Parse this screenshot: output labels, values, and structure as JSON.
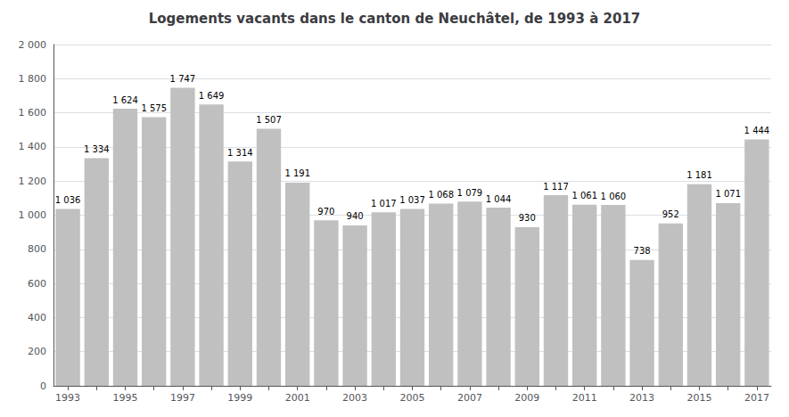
{
  "chart_data": {
    "type": "bar",
    "title": "Logements vacants dans le canton de Neuchâtel, de 1993 à 2017",
    "categories": [
      1993,
      null,
      1995,
      null,
      1997,
      null,
      1999,
      null,
      2001,
      null,
      2003,
      null,
      2005,
      null,
      2007,
      null,
      2009,
      null,
      2011,
      null,
      2013,
      null,
      2015,
      null,
      2017
    ],
    "values": [
      1036,
      1334,
      1624,
      1575,
      1747,
      1649,
      1314,
      1507,
      1191,
      970,
      940,
      1017,
      1037,
      1068,
      1079,
      1044,
      930,
      1117,
      1061,
      1060,
      738,
      952,
      1181,
      1071,
      1444
    ],
    "value_labels": [
      "1 036",
      "1 334",
      "1 624",
      "1 575",
      "1 747",
      "1 649",
      "1 314",
      "1 507",
      "1 191",
      "970",
      "940",
      "1 017",
      "1 037",
      "1 068",
      "1 079",
      "1 044",
      "930",
      "1 117",
      "1 061",
      "1 060",
      "738",
      "952",
      "1 181",
      "1 071",
      "1 444"
    ],
    "data_labels": true,
    "color": "#c0c0c0",
    "ylim": [
      0,
      2000
    ],
    "yticks": [
      0,
      200,
      400,
      600,
      800,
      {
        "value": 1000,
        "label": "1 000"
      },
      {
        "value": 1200,
        "label": "1 200"
      },
      {
        "value": 1400,
        "label": "1 400"
      },
      {
        "value": 1600,
        "label": "1 600"
      },
      {
        "value": 1800,
        "label": "1 800"
      },
      {
        "value": 2000,
        "label": "2 000"
      }
    ],
    "grid": true
  }
}
